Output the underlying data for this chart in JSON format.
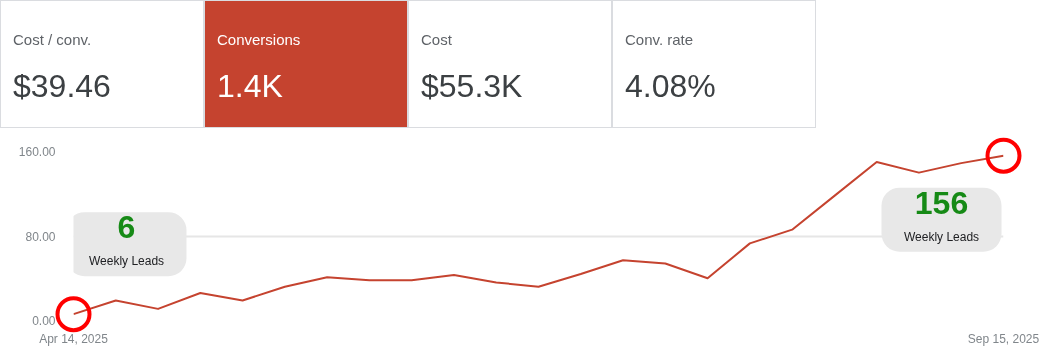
{
  "chart_data": [
    {
      "type": "other",
      "annotations": [
        "Cost / conv.",
        "$39.46",
        "Conversions",
        "1.4K",
        "Cost",
        "$55.3K",
        "Conv. rate",
        "4.08%"
      ],
      "colors": [
        "#ffffff",
        "#c5432f",
        "#ffffff",
        "#ffffff"
      ]
    },
    {
      "type": "line",
      "x": [
        "2025-04-14",
        "2025-04-21",
        "2025-04-28",
        "2025-05-05",
        "2025-05-12",
        "2025-05-19",
        "2025-05-26",
        "2025-06-02",
        "2025-06-09",
        "2025-06-16",
        "2025-06-23",
        "2025-06-30",
        "2025-07-07",
        "2025-07-14",
        "2025-07-21",
        "2025-07-28",
        "2025-08-04",
        "2025-08-11",
        "2025-08-18",
        "2025-08-25",
        "2025-09-01",
        "2025-09-08",
        "2025-09-15"
      ],
      "series": [
        {
          "color": "#c5432f",
          "values": [
            6,
            19,
            11,
            26,
            19,
            32,
            41,
            38,
            38,
            43,
            36,
            32,
            44,
            57,
            54,
            40,
            73,
            86,
            118,
            150,
            140,
            149,
            156
          ]
        }
      ],
      "xlim": [
        "2025-04-14",
        "2025-09-15"
      ],
      "xticks": [
        {
          "value": "2025-04-14",
          "label": "Apr 14, 2025"
        },
        {
          "value": "2025-09-15",
          "label": "Sep 15, 2025"
        }
      ],
      "ylim": [
        0,
        160
      ],
      "yticks": [
        {
          "value": 0,
          "label": "0.00"
        },
        {
          "value": 80,
          "label": "80.00"
        },
        {
          "value": 160,
          "label": "160.00"
        }
      ],
      "grid": "y",
      "marker": "none",
      "line_style": "solid",
      "annotations": [
        {
          "text": "6",
          "x": "2025-04-14",
          "y": 6
        },
        "Weekly Leads",
        {
          "text": "156",
          "x": "2025-09-15",
          "y": 156
        },
        "Weekly Leads"
      ]
    }
  ]
}
